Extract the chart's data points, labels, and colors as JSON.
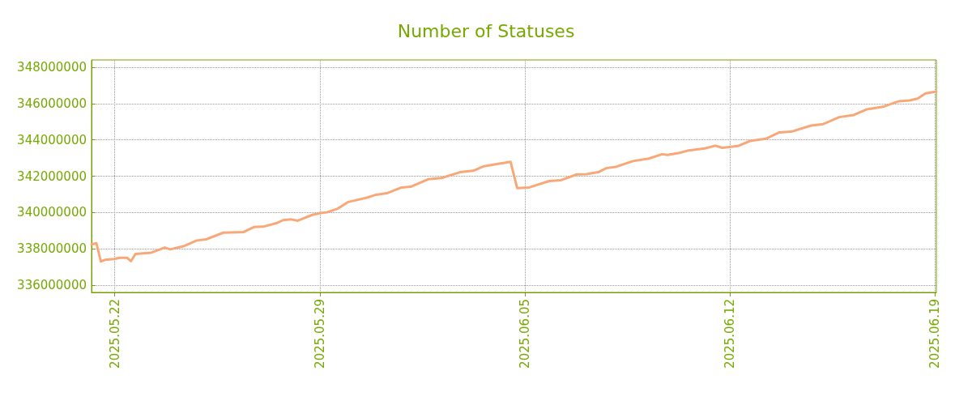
{
  "chart_data": {
    "type": "line",
    "title": "Number of Statuses",
    "x": [
      "2025-05-21T05:00",
      "2025-05-21T09:00",
      "2025-05-21T12:40",
      "2025-05-21T16:00",
      "2025-05-21T23:30",
      "2025-05-22T04:00",
      "2025-05-22T10:00",
      "2025-05-22T13:15",
      "2025-05-22T17:00",
      "2025-05-23T06:00",
      "2025-05-23T17:00",
      "2025-05-23T21:20",
      "2025-05-24T08:15",
      "2025-05-24T19:10",
      "2025-05-25T02:45",
      "2025-05-25T16:55",
      "2025-05-26T09:15",
      "2025-05-26T17:55",
      "2025-05-27T01:35",
      "2025-05-27T12:30",
      "2025-05-27T17:55",
      "2025-05-28T00:30",
      "2025-05-28T05:55",
      "2025-05-28T17:55",
      "2025-05-29T00:30",
      "2025-05-29T05:55",
      "2025-05-29T14:35",
      "2025-05-29T23:20",
      "2025-05-30T14:35",
      "2025-05-30T21:05",
      "2025-05-31T06:55",
      "2025-05-31T18:55",
      "2025-06-01T02:30",
      "2025-06-01T16:40",
      "2025-06-02T03:35",
      "2025-06-02T18:55",
      "2025-06-03T05:40",
      "2025-06-03T14:30",
      "2025-06-03T23:10",
      "2025-06-04T12:15",
      "2025-06-04T17:40",
      "2025-06-05T03:30",
      "2025-06-05T19:50",
      "2025-06-06T05:35",
      "2025-06-06T18:40",
      "2025-06-07T02:20",
      "2025-06-07T12:05",
      "2025-06-07T18:40",
      "2025-06-08T02:20",
      "2025-06-08T16:30",
      "2025-06-09T05:30",
      "2025-06-09T16:25",
      "2025-06-09T20:50",
      "2025-06-10T06:35",
      "2025-06-10T14:10",
      "2025-06-11T03:20",
      "2025-06-11T12:00",
      "2025-06-11T17:30",
      "2025-06-12T06:30",
      "2025-06-12T16:20",
      "2025-06-13T05:25",
      "2025-06-13T16:20",
      "2025-06-14T02:05",
      "2025-06-14T18:30",
      "2025-06-15T04:20",
      "2025-06-15T17:25",
      "2025-06-16T05:20",
      "2025-06-16T16:10",
      "2025-06-17T05:20",
      "2025-06-17T18:25",
      "2025-06-18T03:05",
      "2025-06-18T09:35",
      "2025-06-18T16:10",
      "2025-06-19T00:55"
    ],
    "series": [
      {
        "color": "#f8a878",
        "values": [
          338240000,
          338310000,
          337300000,
          337390000,
          337440000,
          337510000,
          337510000,
          337320000,
          337720000,
          337790000,
          338070000,
          337970000,
          338140000,
          338460000,
          338520000,
          338890000,
          338920000,
          339200000,
          339220000,
          339410000,
          339580000,
          339620000,
          339550000,
          339870000,
          339970000,
          340010000,
          340210000,
          340580000,
          340820000,
          340960000,
          341060000,
          341380000,
          341420000,
          341830000,
          341900000,
          342220000,
          342300000,
          342550000,
          342650000,
          342790000,
          341340000,
          341380000,
          341730000,
          341780000,
          342100000,
          342110000,
          342220000,
          342440000,
          342510000,
          342830000,
          342970000,
          343210000,
          343170000,
          343280000,
          343420000,
          343530000,
          343680000,
          343560000,
          343660000,
          343940000,
          344060000,
          344410000,
          344450000,
          344790000,
          344870000,
          345250000,
          345370000,
          345680000,
          345820000,
          346130000,
          346170000,
          346270000,
          346560000,
          346660000
        ]
      }
    ],
    "xlim": [
      "2025-05-21T05:00",
      "2025-06-19T01:00"
    ],
    "xticks": [
      {
        "value": "2025-05-22",
        "label": "2025.05.22"
      },
      {
        "value": "2025-05-29",
        "label": "2025.05.29"
      },
      {
        "value": "2025-06-05",
        "label": "2025.06.05"
      },
      {
        "value": "2025-06-12",
        "label": "2025.06.12"
      },
      {
        "value": "2025-06-19",
        "label": "2025.06.19"
      }
    ],
    "ylim": [
      335600000,
      348400000
    ],
    "yticks": [
      336000000,
      338000000,
      340000000,
      342000000,
      344000000,
      346000000,
      348000000
    ],
    "grid": true,
    "marker": "none",
    "line_style": "solid"
  }
}
